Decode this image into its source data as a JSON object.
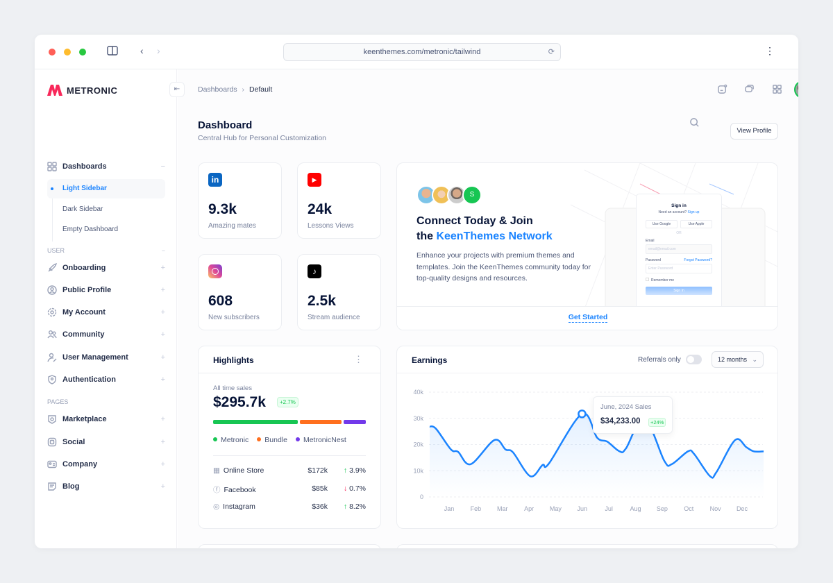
{
  "browser": {
    "url": "keenthemes.com/metronic/tailwind",
    "traffic_lights": [
      "#ff5f57",
      "#febc2e",
      "#28c840"
    ]
  },
  "brand": {
    "name": "METRONIC",
    "accent": "#f8285a"
  },
  "sidebar": {
    "dashboards": {
      "label": "Dashboards",
      "toggle": "−",
      "items": [
        {
          "label": "Light Sidebar",
          "active": true
        },
        {
          "label": "Dark Sidebar"
        },
        {
          "label": "Empty Dashboard"
        }
      ]
    },
    "sections": [
      {
        "label": "USER",
        "toggle": "−",
        "items": [
          {
            "label": "Onboarding",
            "icon": "rocket-icon"
          },
          {
            "label": "Public Profile",
            "icon": "profile-circle-icon"
          },
          {
            "label": "My Account",
            "icon": "gear-icon"
          },
          {
            "label": "Community",
            "icon": "users-icon"
          },
          {
            "label": "User Management",
            "icon": "user-edit-icon"
          },
          {
            "label": "Authentication",
            "icon": "shield-user-icon"
          }
        ]
      },
      {
        "label": "PAGES",
        "items": [
          {
            "label": "Marketplace",
            "icon": "shop-icon"
          },
          {
            "label": "Social",
            "icon": "social-icon"
          },
          {
            "label": "Company",
            "icon": "id-card-icon"
          },
          {
            "label": "Blog",
            "icon": "note-icon"
          }
        ]
      }
    ],
    "expand": "+"
  },
  "breadcrumb": {
    "items": [
      "Dashboards",
      "Default"
    ],
    "separator": "›"
  },
  "page": {
    "title": "Dashboard",
    "subtitle": "Central Hub for Personal Customization",
    "view_profile": "View Profile"
  },
  "stats": [
    {
      "value": "9.3k",
      "label": "Amazing mates",
      "icon": "linkedin-icon",
      "color": "#0a66c2"
    },
    {
      "value": "24k",
      "label": "Lessons Views",
      "icon": "youtube-icon",
      "color": "#ff0000"
    },
    {
      "value": "608",
      "label": "New subscribers",
      "icon": "instagram-icon",
      "color": "#d6249f"
    },
    {
      "value": "2.5k",
      "label": "Stream audience",
      "icon": "tiktok-icon",
      "color": "#000000"
    }
  ],
  "connect": {
    "avatar_initial": "S",
    "title_line1": "Connect Today & Join",
    "title_the": "the",
    "title_highlight": "KeenThemes Network",
    "description": "Enhance your projects with premium themes and templates. Join the KeenThemes community today for top-quality designs and resources.",
    "cta": "Get Started",
    "signin": {
      "title": "Sign in",
      "need": "Need an account?",
      "signup": "Sign up",
      "google": "Use Google",
      "apple": "Use Apple",
      "or": "OR",
      "email_label": "Email",
      "email_placeholder": "email@email.com",
      "password_label": "Password",
      "forgot": "Forgot Password?",
      "password_placeholder": "Enter Password",
      "remember": "Remember me",
      "submit": "Sign In"
    }
  },
  "highlights": {
    "title": "Highlights",
    "subtitle": "All time sales",
    "total": "$295.7k",
    "change": "+2.7%",
    "segments": [
      {
        "name": "Metronic",
        "share": 0.57,
        "color": "#17c653"
      },
      {
        "name": "Bundle",
        "share": 0.28,
        "color": "#ff6f1e"
      },
      {
        "name": "MetronicNest",
        "share": 0.15,
        "color": "#7239ea"
      }
    ],
    "rows": [
      {
        "name": "Online Store",
        "icon": "shop-icon",
        "amount": "$172k",
        "direction": "up",
        "change": "3.9%"
      },
      {
        "name": "Facebook",
        "icon": "facebook-icon",
        "amount": "$85k",
        "direction": "down",
        "change": "0.7%"
      },
      {
        "name": "Instagram",
        "icon": "instagram-icon",
        "amount": "$36k",
        "direction": "up",
        "change": "8.2%"
      }
    ]
  },
  "earnings": {
    "title": "Earnings",
    "referrals_label": "Referrals only",
    "referrals_on": false,
    "period": "12 months",
    "tooltip": {
      "title": "June, 2024 Sales",
      "value": "$34,233.00",
      "change": "+24%"
    }
  },
  "chart_data": {
    "type": "area",
    "categories": [
      "Jan",
      "Feb",
      "Mar",
      "Apr",
      "May",
      "Jun",
      "Jul",
      "Aug",
      "Sep",
      "Oct",
      "Nov",
      "Dec"
    ],
    "yticks": [
      "0",
      "10k",
      "20k",
      "30k",
      "40k"
    ],
    "ylim": [
      0,
      40000
    ],
    "grid": true,
    "color": "#1b84ff",
    "points": [
      [
        0.27,
        26900
      ],
      [
        0.51,
        26000
      ],
      [
        1.07,
        18100
      ],
      [
        1.34,
        17200
      ],
      [
        1.81,
        12500
      ],
      [
        2.7,
        21700
      ],
      [
        3.12,
        18100
      ],
      [
        3.4,
        17000
      ],
      [
        4.05,
        7900
      ],
      [
        4.51,
        12200
      ],
      [
        4.75,
        12800
      ],
      [
        5.99,
        31700
      ],
      [
        6.56,
        22600
      ],
      [
        6.94,
        21100
      ],
      [
        7.4,
        17400
      ],
      [
        7.64,
        18500
      ],
      [
        8.33,
        30000
      ],
      [
        9.08,
        13800
      ],
      [
        9.36,
        12500
      ],
      [
        9.97,
        17400
      ],
      [
        10.2,
        16400
      ],
      [
        10.8,
        7900
      ],
      [
        11.04,
        9500
      ],
      [
        11.74,
        21700
      ],
      [
        12.16,
        19000
      ],
      [
        12.44,
        17400
      ],
      [
        12.81,
        17400
      ]
    ],
    "highlight_month": 6
  }
}
